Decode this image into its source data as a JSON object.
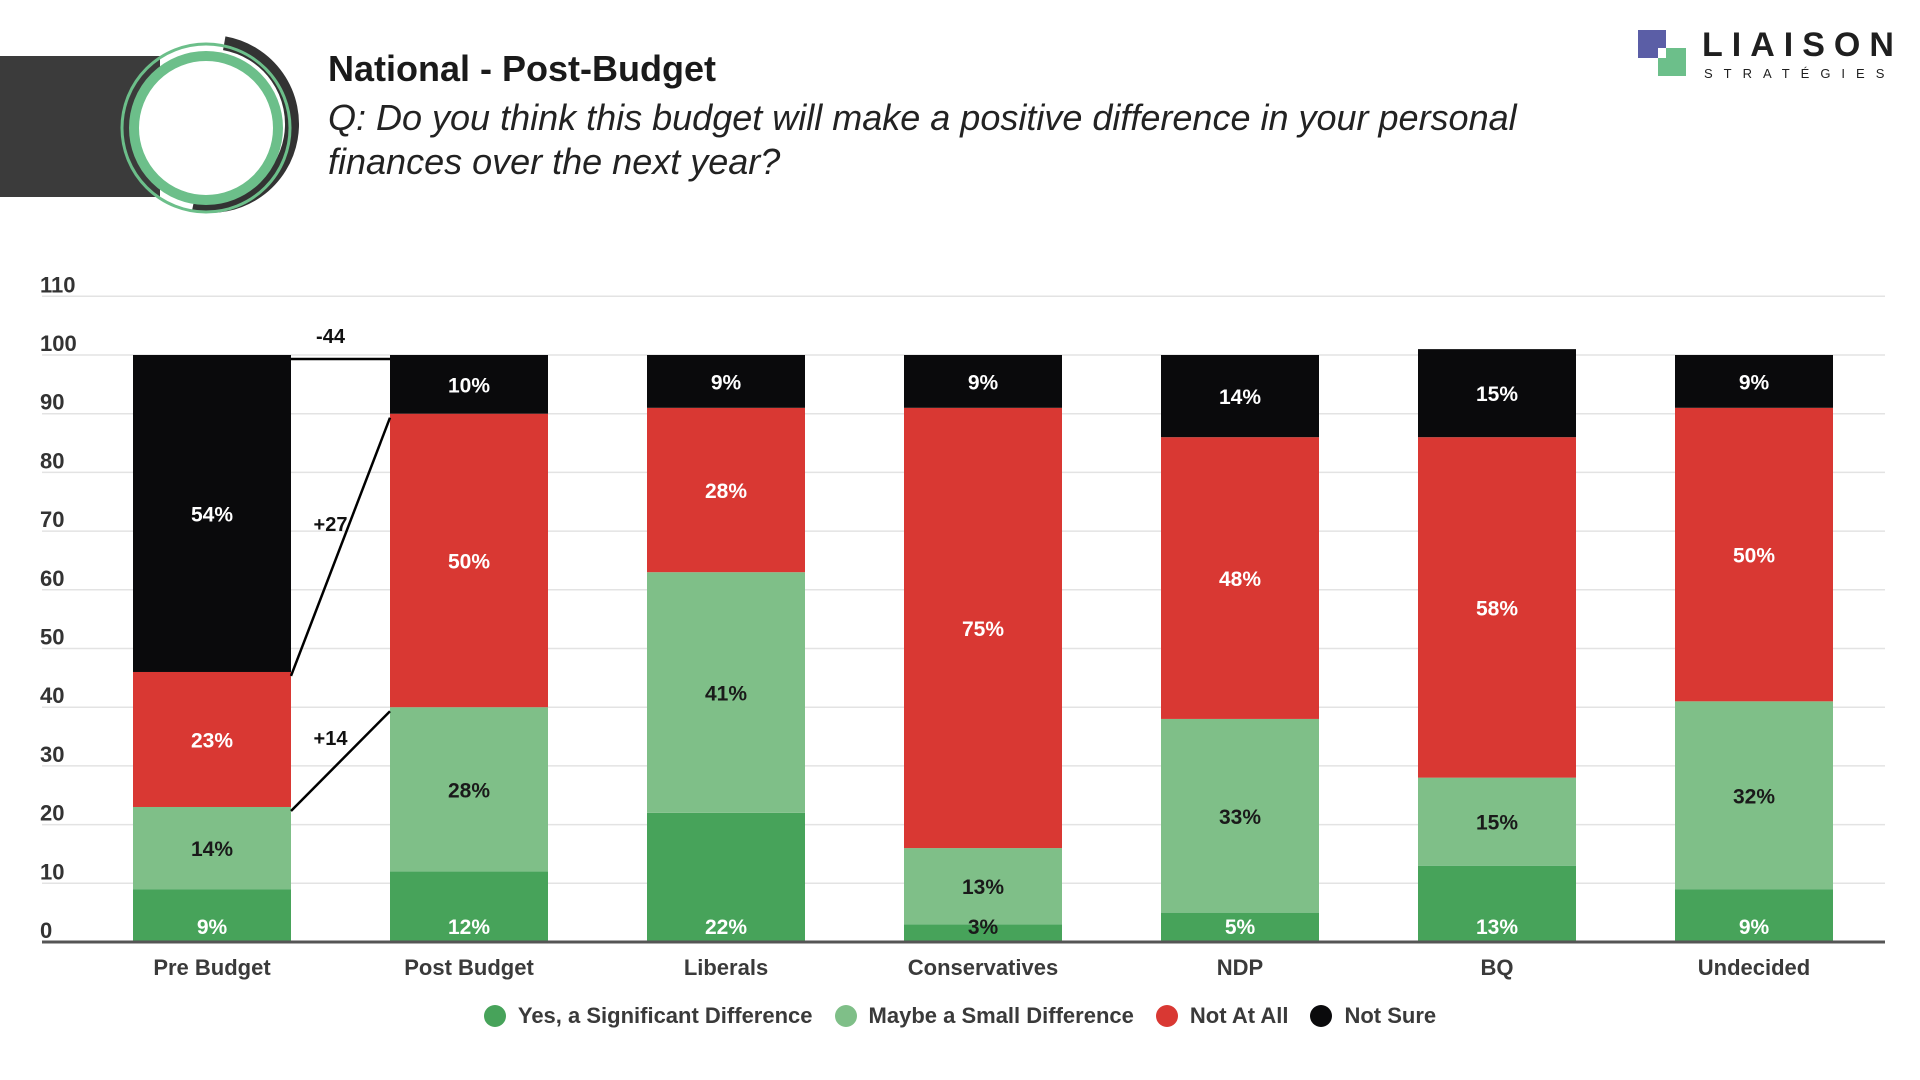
{
  "header": {
    "title": "National - Post-Budget",
    "question": "Q: Do you think this budget will make a positive difference in your personal finances over the next year?"
  },
  "logo": {
    "word": "LIAISON",
    "sub": "STRATÉGIES",
    "colors": {
      "purple": "#5b5ea6",
      "green": "#6cbf8a"
    }
  },
  "chart_data": {
    "type": "bar",
    "stacked": true,
    "title": "National - Post-Budget",
    "ylim": [
      0,
      110
    ],
    "yticks": [
      0,
      10,
      20,
      30,
      40,
      50,
      60,
      70,
      80,
      90,
      100,
      110
    ],
    "grid": true,
    "legend_position": "bottom",
    "categories": [
      "Pre Budget",
      "Post Budget",
      "Liberals",
      "Conservatives",
      "NDP",
      "BQ",
      "Undecided"
    ],
    "series": [
      {
        "name": "Yes, a Significant Difference",
        "color": "#47a35a",
        "values": [
          9,
          12,
          22,
          3,
          5,
          13,
          9
        ]
      },
      {
        "name": "Maybe a Small Difference",
        "color": "#7fbf88",
        "values": [
          14,
          28,
          41,
          13,
          33,
          15,
          32
        ]
      },
      {
        "name": "Not At All",
        "color": "#d93833",
        "values": [
          23,
          50,
          28,
          75,
          48,
          58,
          50
        ]
      },
      {
        "name": "Not Sure",
        "color": "#0a0a0c",
        "values": [
          54,
          10,
          9,
          9,
          14,
          15,
          9
        ]
      }
    ],
    "annotations": [
      {
        "text": "-44",
        "series": "Not Sure"
      },
      {
        "text": "+27",
        "series": "Not At All"
      },
      {
        "text": "+14",
        "series": "Maybe a Small Difference"
      }
    ]
  }
}
